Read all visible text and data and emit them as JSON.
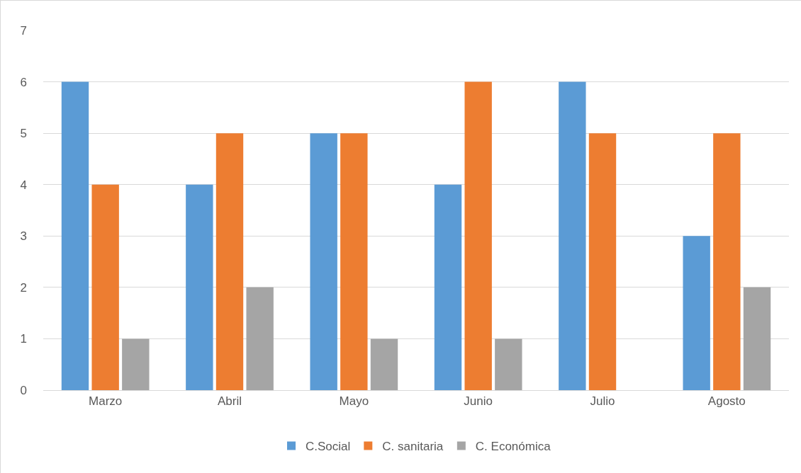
{
  "chart_data": {
    "type": "bar",
    "categories": [
      "Marzo",
      "Abril",
      "Mayo",
      "Junio",
      "Julio",
      "Agosto"
    ],
    "series": [
      {
        "name": "C.Social",
        "color": "#5b9bd5",
        "values": [
          6,
          4,
          5,
          4,
          6,
          3
        ]
      },
      {
        "name": "C. sanitaria",
        "color": "#ed7d31",
        "values": [
          4,
          5,
          5,
          6,
          5,
          5
        ]
      },
      {
        "name": "C. Económica",
        "color": "#a5a5a5",
        "values": [
          1,
          2,
          1,
          1,
          0,
          2
        ]
      }
    ],
    "ylim": [
      0,
      7
    ],
    "yticks": [
      0,
      1,
      2,
      3,
      4,
      5,
      6,
      7
    ],
    "grid": "y",
    "legend": "bottom"
  }
}
